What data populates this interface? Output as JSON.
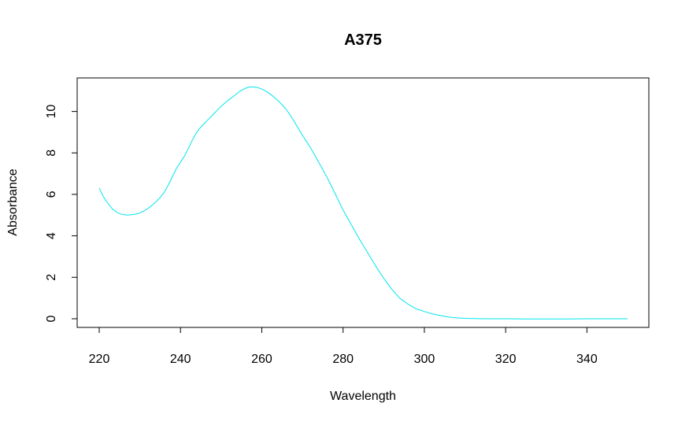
{
  "chart_data": {
    "type": "line",
    "title": "A375",
    "xlabel": "Wavelength",
    "ylabel": "Absorbance",
    "xlim": [
      220,
      350
    ],
    "ylim": [
      0,
      11.2
    ],
    "x_ticks": [
      "220",
      "240",
      "260",
      "280",
      "300",
      "320",
      "340"
    ],
    "y_ticks": [
      "0",
      "2",
      "4",
      "6",
      "8",
      "10"
    ],
    "grid": false,
    "series": [
      {
        "color": "#00e5ee",
        "x": [
          220,
          221,
          222,
          223,
          224,
          225,
          226,
          227,
          228,
          229,
          230,
          231,
          232,
          233,
          234,
          235,
          236,
          237,
          238,
          239,
          240,
          241,
          242,
          243,
          244,
          245,
          246,
          247,
          248,
          249,
          250,
          251,
          252,
          253,
          254,
          255,
          256,
          257,
          258,
          259,
          260,
          261,
          262,
          263,
          264,
          265,
          266,
          267,
          268,
          269,
          270,
          272,
          274,
          276,
          278,
          280,
          282,
          284,
          286,
          288,
          290,
          292,
          294,
          296,
          298,
          300,
          302,
          304,
          306,
          308,
          310,
          312,
          315,
          320,
          325,
          330,
          335,
          340,
          345,
          350
        ],
        "y": [
          6.3,
          5.9,
          5.6,
          5.35,
          5.18,
          5.07,
          5.02,
          5.0,
          5.02,
          5.05,
          5.1,
          5.2,
          5.32,
          5.48,
          5.65,
          5.85,
          6.1,
          6.45,
          6.85,
          7.25,
          7.55,
          7.85,
          8.25,
          8.65,
          9.0,
          9.25,
          9.45,
          9.65,
          9.85,
          10.05,
          10.25,
          10.42,
          10.58,
          10.72,
          10.88,
          11.02,
          11.12,
          11.18,
          11.18,
          11.15,
          11.08,
          10.98,
          10.85,
          10.7,
          10.52,
          10.32,
          10.1,
          9.82,
          9.5,
          9.18,
          8.85,
          8.25,
          7.55,
          6.85,
          6.05,
          5.25,
          4.55,
          3.85,
          3.2,
          2.55,
          1.95,
          1.42,
          0.98,
          0.7,
          0.48,
          0.35,
          0.23,
          0.15,
          0.08,
          0.04,
          0.02,
          0.01,
          0.0,
          0.0,
          -0.01,
          -0.01,
          -0.01,
          0.0,
          0.0,
          0.0
        ]
      }
    ]
  }
}
